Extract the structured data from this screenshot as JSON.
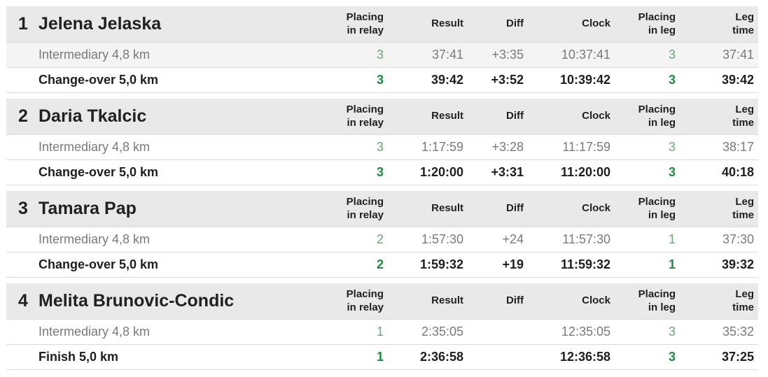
{
  "table": {
    "columns": {
      "placing_relay": "Placing\nin relay",
      "result": "Result",
      "diff": "Diff",
      "clock": "Clock",
      "placing_leg": "Placing\nin leg",
      "leg_time": "Leg\ntime"
    },
    "colors": {
      "header_bg": "#e9e9e9",
      "striped_row_bg": "#f4f4f4",
      "border": "#dcdcdc",
      "dark_text": "#1e1e1e",
      "gray_text": "#7a7a7a",
      "placing_green": "#6aa578",
      "placing_green_bold": "#1f8a44"
    },
    "legs": [
      {
        "number": "1",
        "name": "Jelena Jelaska",
        "rows": [
          {
            "label": "Intermediary 4,8 km",
            "placing_relay": "3",
            "result": "37:41",
            "diff": "+3:35",
            "clock": "10:37:41",
            "placing_leg": "3",
            "leg_time": "37:41",
            "striped": true
          },
          {
            "label": "Change-over 5,0 km",
            "placing_relay": "3",
            "result": "39:42",
            "diff": "+3:52",
            "clock": "10:39:42",
            "placing_leg": "3",
            "leg_time": "39:42",
            "striped": false
          }
        ]
      },
      {
        "number": "2",
        "name": "Daria Tkalcic",
        "rows": [
          {
            "label": "Intermediary 4,8 km",
            "placing_relay": "3",
            "result": "1:17:59",
            "diff": "+3:28",
            "clock": "11:17:59",
            "placing_leg": "3",
            "leg_time": "38:17",
            "striped": false
          },
          {
            "label": "Change-over 5,0 km",
            "placing_relay": "3",
            "result": "1:20:00",
            "diff": "+3:31",
            "clock": "11:20:00",
            "placing_leg": "3",
            "leg_time": "40:18",
            "striped": false
          }
        ]
      },
      {
        "number": "3",
        "name": "Tamara Pap",
        "rows": [
          {
            "label": "Intermediary 4,8 km",
            "placing_relay": "2",
            "result": "1:57:30",
            "diff": "+24",
            "clock": "11:57:30",
            "placing_leg": "1",
            "leg_time": "37:30",
            "striped": false
          },
          {
            "label": "Change-over 5,0 km",
            "placing_relay": "2",
            "result": "1:59:32",
            "diff": "+19",
            "clock": "11:59:32",
            "placing_leg": "1",
            "leg_time": "39:32",
            "striped": false
          }
        ]
      },
      {
        "number": "4",
        "name": "Melita Brunovic-Condic",
        "rows": [
          {
            "label": "Intermediary 4,8 km",
            "placing_relay": "1",
            "result": "2:35:05",
            "diff": "",
            "clock": "12:35:05",
            "placing_leg": "3",
            "leg_time": "35:32",
            "striped": false
          },
          {
            "label": "Finish 5,0 km",
            "placing_relay": "1",
            "result": "2:36:58",
            "diff": "",
            "clock": "12:36:58",
            "placing_leg": "3",
            "leg_time": "37:25",
            "striped": false
          }
        ]
      }
    ]
  }
}
